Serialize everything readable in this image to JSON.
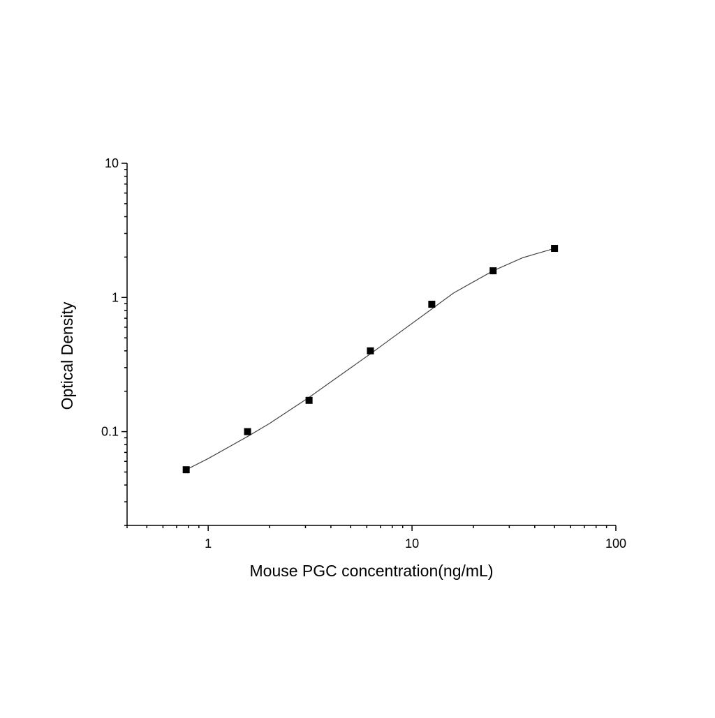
{
  "chart_data": {
    "type": "scatter",
    "x_label": "Mouse PGC concentration(ng/mL)",
    "y_label": "Optical Density",
    "xscale": "log",
    "yscale": "log",
    "xlim": [
      0.4,
      100
    ],
    "ylim": [
      0.02,
      10
    ],
    "xticks": [
      1,
      10,
      100
    ],
    "yticks": [
      0.1,
      1,
      10
    ],
    "xminor": [
      0.4,
      0.5,
      0.6,
      0.7,
      0.8,
      0.9,
      2,
      3,
      4,
      5,
      6,
      7,
      8,
      9,
      20,
      30,
      40,
      50,
      60,
      70,
      80,
      90
    ],
    "yminor": [
      0.02,
      0.03,
      0.04,
      0.05,
      0.06,
      0.07,
      0.08,
      0.09,
      0.2,
      0.3,
      0.4,
      0.5,
      0.6,
      0.7,
      0.8,
      0.9,
      2,
      3,
      4,
      5,
      6,
      7,
      8,
      9
    ],
    "series": [
      {
        "style": "marker",
        "marker": "square",
        "color": "#000000",
        "x": [
          0.78,
          1.56,
          3.125,
          6.25,
          12.5,
          25,
          50
        ],
        "values": [
          0.052,
          0.1,
          0.171,
          0.4,
          0.89,
          1.58,
          2.32
        ]
      },
      {
        "style": "line",
        "color": "#444444",
        "x": [
          0.78,
          1,
          1.56,
          2,
          3.125,
          4,
          6.25,
          8,
          12.5,
          16,
          25,
          35,
          50
        ],
        "values": [
          0.052,
          0.063,
          0.092,
          0.115,
          0.18,
          0.235,
          0.38,
          0.5,
          0.82,
          1.08,
          1.58,
          1.98,
          2.32
        ]
      }
    ]
  }
}
